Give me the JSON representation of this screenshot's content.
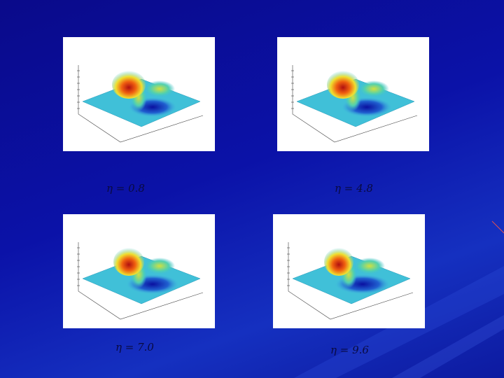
{
  "panels": [
    {
      "caption": "η = 0.8"
    },
    {
      "caption": "η = 4.8"
    },
    {
      "caption": "η = 7.0"
    },
    {
      "caption": "η = 9.6"
    }
  ]
}
